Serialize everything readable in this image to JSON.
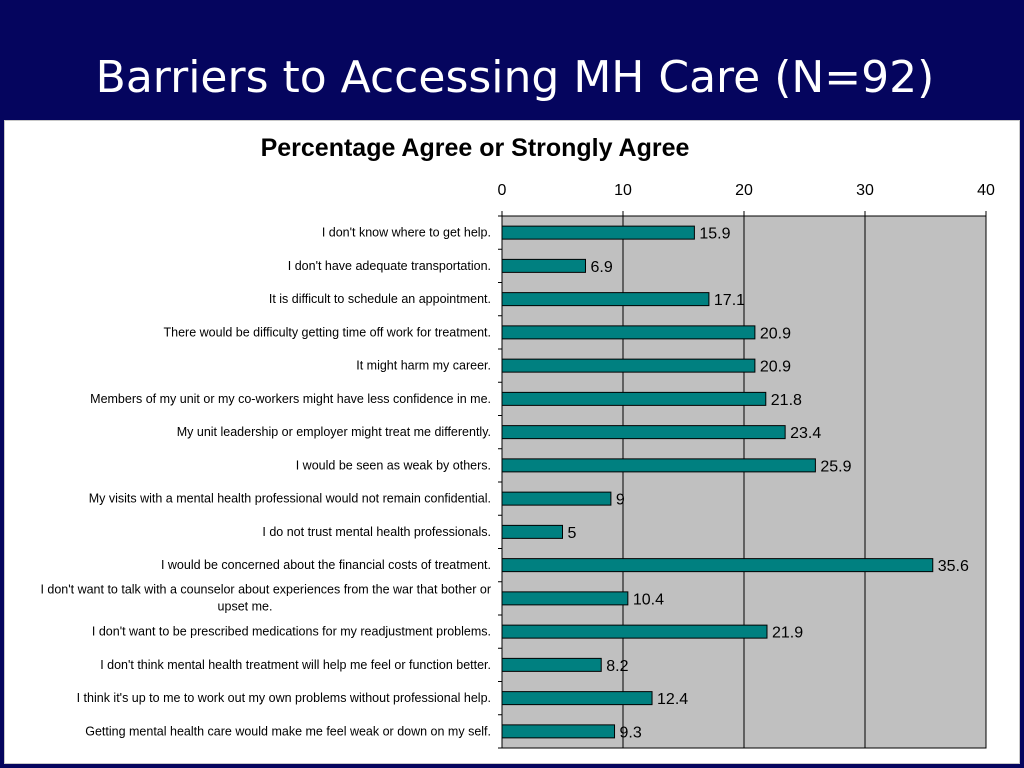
{
  "slide": {
    "title": "Barriers to Accessing MH Care (N=92)"
  },
  "colors": {
    "background": "#05055e",
    "plot_area": "#c0c0c0",
    "bar": "#008080",
    "bar_border": "#000000"
  },
  "chart_data": {
    "type": "bar",
    "orientation": "horizontal",
    "title": "Percentage Agree or Strongly Agree",
    "xlabel": "",
    "ylabel": "",
    "xlim": [
      0,
      40
    ],
    "ticks": [
      0,
      10,
      20,
      30,
      40
    ],
    "grid": true,
    "legend": "none",
    "categories": [
      "I don't know where to get help.",
      "I don't have adequate transportation.",
      "It is difficult to schedule an appointment.",
      "There would be difficulty getting time off work for treatment.",
      "It might harm my career.",
      "Members of my unit or my co-workers might have less confidence in me.",
      "My unit leadership or employer might treat me differently.",
      "I would be seen as weak by others.",
      "My visits with a mental health professional would not remain confidential.",
      "I do not trust mental health professionals.",
      "I would be concerned about the financial costs of treatment.",
      "I don't want to talk with a counselor about experiences from the war that bother or upset me.",
      "I don't want to be prescribed medications for my readjustment problems.",
      "I don't think mental health treatment will help me feel or function better.",
      "I think it's up to me to work out my own problems without professional help.",
      "Getting mental health care would make me feel weak or down on my self."
    ],
    "values": [
      15.9,
      6.9,
      17.1,
      20.9,
      20.9,
      21.8,
      23.4,
      25.9,
      9,
      5,
      35.6,
      10.4,
      21.9,
      8.2,
      12.4,
      9.3
    ],
    "data_labels": [
      "15.9",
      "6.9",
      "17.1",
      "20.9",
      "20.9",
      "21.8",
      "23.4",
      "25.9",
      "9",
      "5",
      "35.6",
      "10.4",
      "21.9",
      "8.2",
      "12.4",
      "9.3"
    ]
  }
}
